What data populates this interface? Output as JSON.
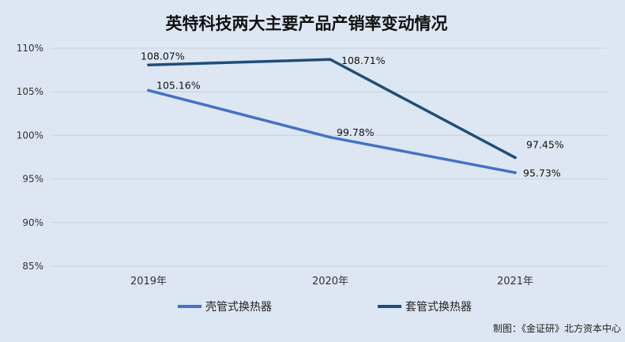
{
  "chart_data": {
    "type": "line",
    "title": "英特科技两大主要产品产销率变动情况",
    "categories": [
      "2019年",
      "2020年",
      "2021年"
    ],
    "ylim": [
      85,
      110
    ],
    "yticks": [
      85,
      90,
      95,
      100,
      105,
      110
    ],
    "ytick_labels": [
      "85%",
      "90%",
      "95%",
      "100%",
      "105%",
      "110%"
    ],
    "grid": true,
    "legend_position": "bottom",
    "series": [
      {
        "name": "壳管式换热器",
        "values": [
          105.16,
          99.78,
          95.73
        ],
        "labels": [
          "105.16%",
          "99.78%",
          "95.73%"
        ],
        "color": "#4472c4"
      },
      {
        "name": "套管式换热器",
        "values": [
          108.07,
          108.71,
          97.45
        ],
        "labels": [
          "108.07%",
          "108.71%",
          "97.45%"
        ],
        "color": "#1f4e79"
      }
    ]
  },
  "credit": "制图：《金证研》北方资本中心"
}
